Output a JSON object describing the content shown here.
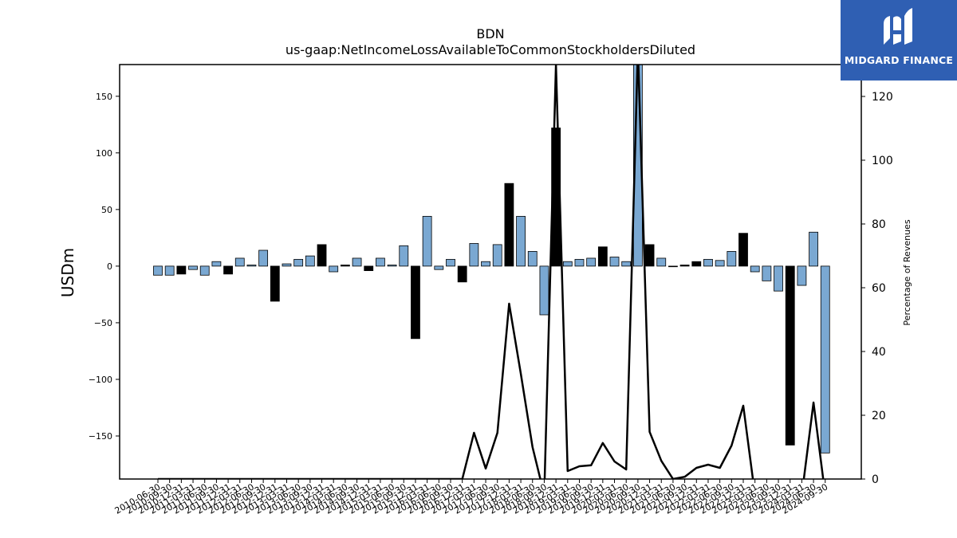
{
  "chart_data": {
    "type": "bar",
    "title": "BDN",
    "subtitle": "us-gaap:NetIncomeLossAvailableToCommonStockholdersDiluted",
    "ylabel": "USDm",
    "y2label": "Percentage of Revenues",
    "ylim": [
      -188,
      178
    ],
    "y2lim": [
      0,
      130
    ],
    "yticks": [
      150,
      100,
      50,
      0,
      -50,
      -100,
      -150
    ],
    "y2ticks": [
      120,
      100,
      80,
      60,
      40,
      20,
      0
    ],
    "grid": false,
    "colors": {
      "positive_bar": "#7aa8d2",
      "negative_bar": "#000000",
      "line": "#000000"
    },
    "categories": [
      "2010-06-30",
      "2010-09-30",
      "2010-12-31",
      "2011-03-31",
      "2011-06-30",
      "2011-09-30",
      "2011-12-31",
      "2012-03-31",
      "2012-06-30",
      "2012-09-30",
      "2012-12-31",
      "2013-03-31",
      "2013-06-30",
      "2013-09-30",
      "2013-12-31",
      "2014-03-31",
      "2014-06-30",
      "2014-09-30",
      "2014-12-31",
      "2015-03-31",
      "2015-06-30",
      "2015-09-30",
      "2015-12-31",
      "2016-03-31",
      "2016-06-30",
      "2016-09-30",
      "2016-12-31",
      "2017-03-31",
      "2017-06-30",
      "2017-09-30",
      "2017-12-31",
      "2018-03-31",
      "2018-06-30",
      "2018-09-30",
      "2018-12-31",
      "2019-03-31",
      "2019-06-30",
      "2019-09-30",
      "2019-12-31",
      "2020-03-31",
      "2020-06-30",
      "2020-09-30",
      "2020-12-31",
      "2021-03-31",
      "2021-06-30",
      "2021-09-30",
      "2021-12-31",
      "2022-03-31",
      "2022-06-30",
      "2022-09-30",
      "2022-12-31",
      "2023-03-31",
      "2023-06-30",
      "2023-09-30",
      "2023-12-31",
      "2024-03-31",
      "2024-06-30",
      "2024-09-30"
    ],
    "series": [
      {
        "values": [
          -8,
          -8,
          -7,
          -3,
          -8,
          4,
          -7,
          7,
          1,
          14,
          -31,
          2,
          6,
          9,
          19,
          -5,
          1,
          7,
          -4,
          7,
          1,
          18,
          -64,
          44,
          -3,
          6,
          -14,
          20,
          4,
          19,
          73,
          44,
          13,
          -43,
          122,
          4,
          6,
          7,
          17,
          8,
          4,
          185,
          19,
          7,
          0,
          1,
          4,
          6,
          5,
          13,
          29,
          -5,
          -13,
          -22,
          -158,
          -17,
          30,
          -165
        ],
        "bar_colors": [
          "blue",
          "blue",
          "black",
          "blue",
          "blue",
          "blue",
          "black",
          "blue",
          "blue",
          "blue",
          "black",
          "blue",
          "blue",
          "blue",
          "black",
          "blue",
          "black",
          "blue",
          "black",
          "blue",
          "blue",
          "blue",
          "black",
          "blue",
          "blue",
          "blue",
          "black",
          "blue",
          "blue",
          "blue",
          "black",
          "blue",
          "blue",
          "blue",
          "black",
          "blue",
          "blue",
          "blue",
          "black",
          "blue",
          "blue",
          "blue",
          "black",
          "blue",
          "black",
          "black",
          "black",
          "blue",
          "blue",
          "blue",
          "black",
          "blue",
          "blue",
          "blue",
          "black",
          "blue",
          "blue",
          "blue"
        ]
      },
      {
        "axis": "right",
        "values": [
          0,
          0,
          0,
          0,
          0,
          0,
          0,
          0,
          0,
          0,
          0,
          0,
          0,
          0,
          0,
          0,
          0,
          0,
          0,
          0,
          0,
          0,
          0,
          0,
          0,
          0,
          0,
          14.5,
          3.3,
          14.5,
          55,
          33,
          10,
          -5,
          130,
          2.5,
          4,
          4.3,
          11.3,
          5.5,
          3,
          135,
          14.8,
          5.7,
          0,
          0.7,
          3.5,
          4.5,
          3.5,
          10.5,
          23,
          -5,
          -5,
          -5,
          -5,
          -5,
          24,
          -5
        ]
      }
    ]
  },
  "logo": {
    "text": "MIDGARD FINANCE"
  }
}
